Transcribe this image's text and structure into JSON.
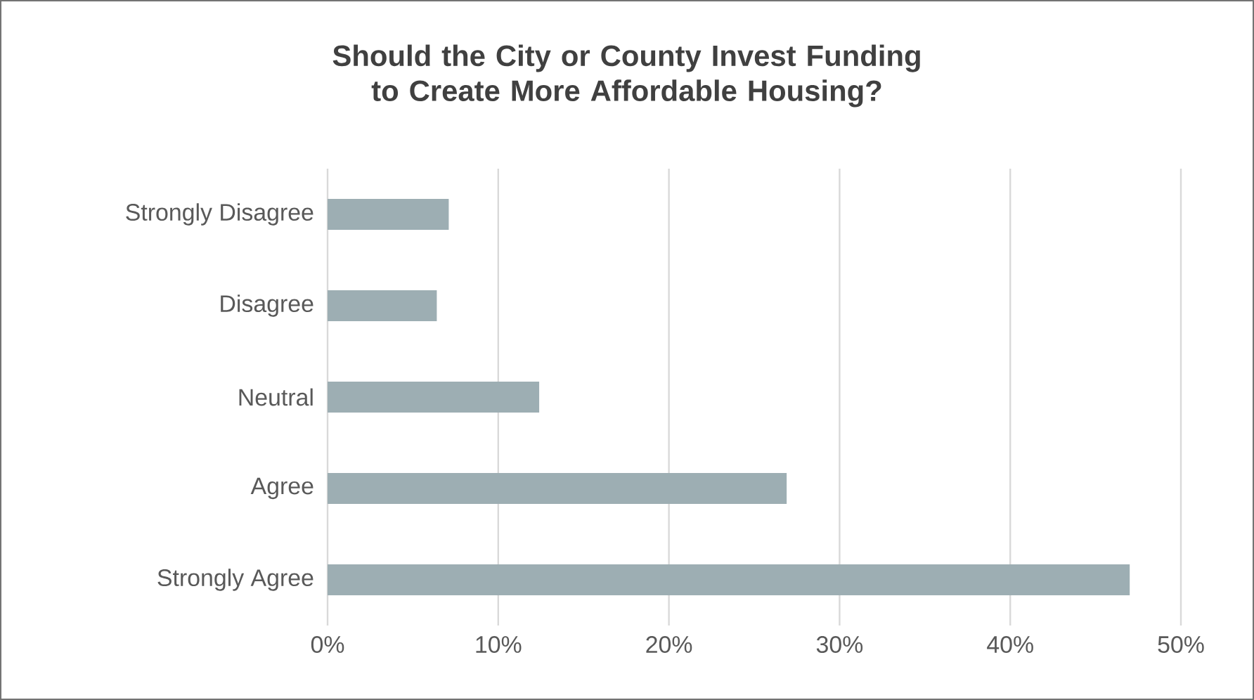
{
  "chart_data": {
    "type": "bar",
    "orientation": "horizontal",
    "title": "Should the City or County Invest Funding to Create More Affordable Housing?",
    "categories": [
      "Strongly Disagree",
      "Disagree",
      "Neutral",
      "Agree",
      "Strongly Agree"
    ],
    "values": [
      7.1,
      6.4,
      12.4,
      26.9,
      47.0
    ],
    "color": "#9daeb3",
    "xlim": [
      0,
      50
    ],
    "xticks": [
      {
        "value": 0,
        "label": "0%"
      },
      {
        "value": 10,
        "label": "10%"
      },
      {
        "value": 20,
        "label": "20%"
      },
      {
        "value": 30,
        "label": "30%"
      },
      {
        "value": 40,
        "label": "40%"
      },
      {
        "value": 50,
        "label": "50%"
      }
    ],
    "grid": "x"
  }
}
